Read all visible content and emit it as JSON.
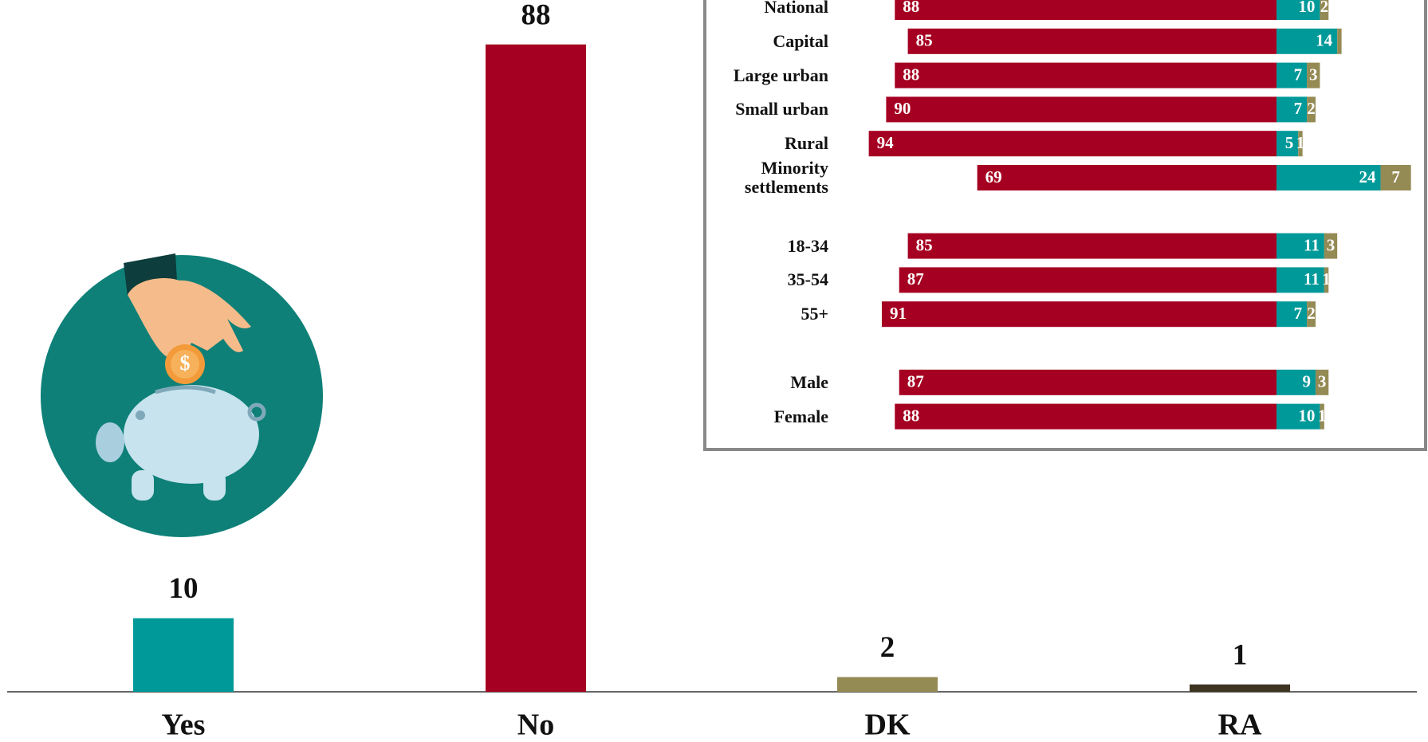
{
  "chart_data": [
    {
      "type": "bar",
      "categories": [
        "Yes",
        "No",
        "DK",
        "RA"
      ],
      "values": [
        10,
        88,
        2,
        1
      ],
      "colors": [
        "#009999",
        "#a50021",
        "#948a54",
        "#3d3522"
      ]
    },
    {
      "type": "diverging-bar",
      "categories": [
        "National",
        "Capital",
        "Large urban",
        "Small urban",
        "Rural",
        "Minority settlements",
        null,
        "18-34",
        "35-54",
        "55+",
        null,
        "Male",
        "Female"
      ],
      "series": [
        {
          "color": "#a50021",
          "side": "left",
          "values": [
            88,
            85,
            88,
            90,
            94,
            69,
            null,
            85,
            87,
            91,
            null,
            87,
            88
          ]
        },
        {
          "color": "#009999",
          "side": "right",
          "values": [
            10,
            14,
            7,
            7,
            5,
            24,
            null,
            11,
            11,
            7,
            null,
            9,
            10
          ]
        },
        {
          "color": "#948a54",
          "side": "right",
          "values": [
            2,
            1,
            3,
            2,
            1,
            7,
            null,
            3,
            1,
            2,
            null,
            3,
            1
          ],
          "value_labels": [
            "2",
            null,
            "3",
            "2",
            "1",
            "7",
            null,
            "3",
            "1",
            "2",
            null,
            "3",
            "1"
          ]
        }
      ]
    }
  ]
}
